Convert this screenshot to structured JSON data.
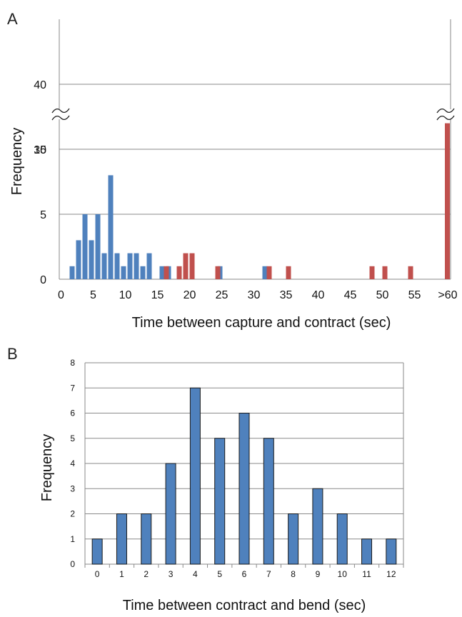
{
  "chart_data": [
    {
      "panel_label": "A",
      "type": "bar",
      "xlabel": "Time between capture and contract (sec)",
      "ylabel": "Frequency",
      "y_ticks": [
        "0",
        "5",
        "10",
        "35",
        "40"
      ],
      "y_axis_break": true,
      "x_ticks": [
        "0",
        "5",
        "10",
        "15",
        "20",
        "25",
        "30",
        "35",
        "40",
        "45",
        "50",
        "55",
        ">60"
      ],
      "grid": true,
      "colors": {
        "blue": "#4f81bd",
        "red": "#c0504d"
      },
      "series": [
        {
          "color": "#4f81bd",
          "points": [
            {
              "x": 2,
              "y": 1
            },
            {
              "x": 3,
              "y": 3
            },
            {
              "x": 4,
              "y": 5
            },
            {
              "x": 5,
              "y": 3
            },
            {
              "x": 6,
              "y": 5
            },
            {
              "x": 7,
              "y": 2
            },
            {
              "x": 8,
              "y": 8
            },
            {
              "x": 9,
              "y": 2
            },
            {
              "x": 10,
              "y": 1
            },
            {
              "x": 11,
              "y": 2
            },
            {
              "x": 12,
              "y": 2
            },
            {
              "x": 13,
              "y": 1
            },
            {
              "x": 14,
              "y": 2
            },
            {
              "x": 16,
              "y": 1
            },
            {
              "x": 17,
              "y": 1
            },
            {
              "x": 25,
              "y": 1
            },
            {
              "x": 32,
              "y": 1
            }
          ]
        },
        {
          "color": "#c0504d",
          "points": [
            {
              "x": 16,
              "y": 1
            },
            {
              "x": 18,
              "y": 1
            },
            {
              "x": 19,
              "y": 2
            },
            {
              "x": 20,
              "y": 2
            },
            {
              "x": 24,
              "y": 1
            },
            {
              "x": 32,
              "y": 1
            },
            {
              "x": 35,
              "y": 1
            },
            {
              "x": 48,
              "y": 1
            },
            {
              "x": 50,
              "y": 1
            },
            {
              "x": 54,
              "y": 1
            },
            {
              "x": ">60",
              "y": 37
            }
          ]
        }
      ]
    },
    {
      "panel_label": "B",
      "type": "bar",
      "xlabel": "Time between contract and bend (sec)",
      "ylabel": "Frequency",
      "ylim": [
        0,
        8
      ],
      "y_ticks": [
        "0",
        "1",
        "2",
        "3",
        "4",
        "5",
        "6",
        "7",
        "8"
      ],
      "grid": true,
      "color": "#4f81bd",
      "categories": [
        "0",
        "1",
        "2",
        "3",
        "4",
        "5",
        "6",
        "7",
        "8",
        "9",
        "10",
        "11",
        "12"
      ],
      "values": [
        1,
        2,
        2,
        4,
        7,
        5,
        6,
        5,
        2,
        3,
        2,
        1,
        1
      ]
    }
  ]
}
